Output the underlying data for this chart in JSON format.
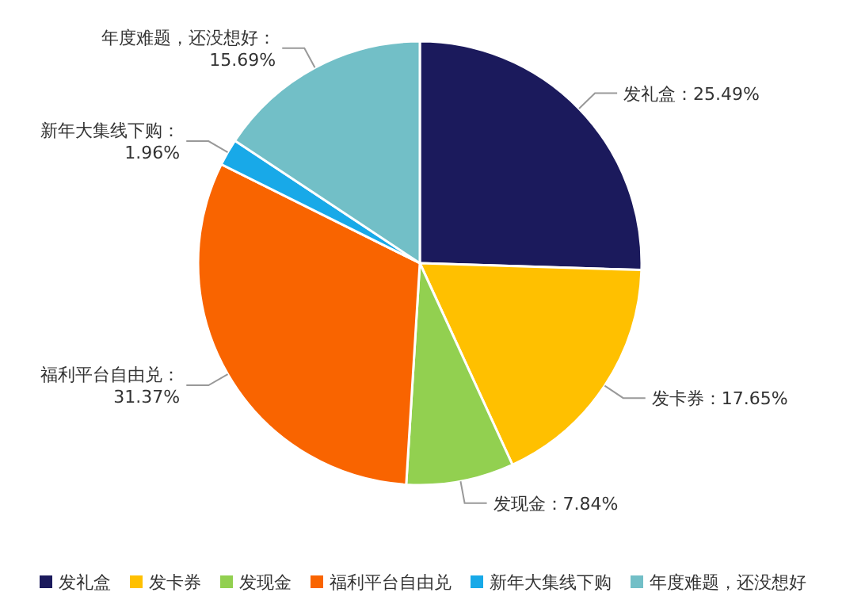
{
  "chart_data": {
    "type": "pie",
    "categories": [
      "发礼盒",
      "发卡券",
      "发现金",
      "福利平台自由兑",
      "新年大集线下购",
      "年度难题，还没想好"
    ],
    "values": [
      25.49,
      17.65,
      7.84,
      31.37,
      1.96,
      15.69
    ],
    "value_labels": [
      "：25.49%",
      "：17.65%",
      "：7.84%",
      "：31.37%",
      "：1.96%",
      "：15.69%"
    ],
    "colors": [
      "#1b1a5c",
      "#ffc000",
      "#92d050",
      "#f96400",
      "#18a9e8",
      "#72bfc7"
    ],
    "legend": "bottom"
  }
}
